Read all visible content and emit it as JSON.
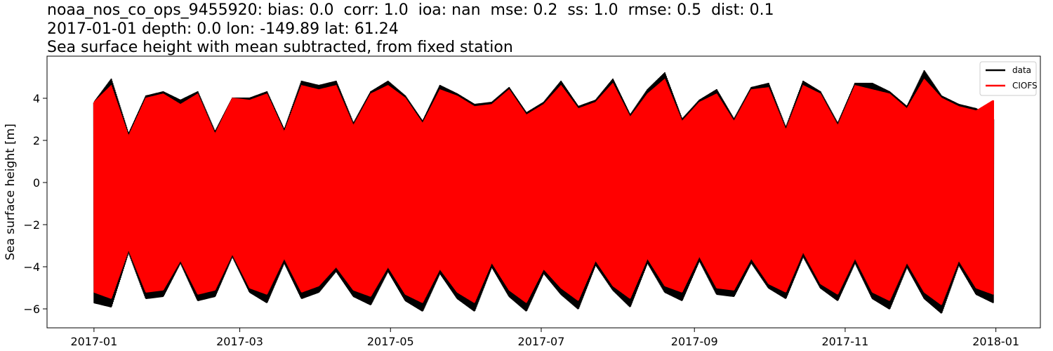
{
  "title": {
    "line1": "noaa_nos_co_ops_9455920: bias: 0.0  corr: 1.0  ioa: nan  mse: 0.2  ss: 1.0  rmse: 0.5  dist: 0.1",
    "line2": "2017-01-01 depth: 0.0 lon: -149.89 lat: 61.24",
    "line3": "Sea surface height with mean subtracted, from fixed station"
  },
  "chart_data": {
    "type": "line",
    "title": "Sea surface height with mean subtracted, from fixed station",
    "xlabel": "",
    "ylabel": "Sea surface height [m]",
    "xlim": [
      "2016-12-13",
      "2018-01-19"
    ],
    "ylim": [
      -6.9,
      6.0
    ],
    "x_ticks": [
      "2017-01",
      "2017-03",
      "2017-05",
      "2017-07",
      "2017-09",
      "2017-11",
      "2018-01"
    ],
    "y_ticks": [
      -6,
      -4,
      -2,
      0,
      2,
      4
    ],
    "grid": false,
    "legend_position": "top-right",
    "x": [
      "2017-01-01",
      "2017-01-08",
      "2017-01-15",
      "2017-01-22",
      "2017-01-29",
      "2017-02-05",
      "2017-02-12",
      "2017-02-19",
      "2017-02-26",
      "2017-03-05",
      "2017-03-12",
      "2017-03-19",
      "2017-03-26",
      "2017-04-02",
      "2017-04-09",
      "2017-04-16",
      "2017-04-23",
      "2017-04-30",
      "2017-05-07",
      "2017-05-14",
      "2017-05-21",
      "2017-05-28",
      "2017-06-04",
      "2017-06-11",
      "2017-06-18",
      "2017-06-25",
      "2017-07-02",
      "2017-07-09",
      "2017-07-16",
      "2017-07-23",
      "2017-07-30",
      "2017-08-06",
      "2017-08-13",
      "2017-08-20",
      "2017-08-27",
      "2017-09-03",
      "2017-09-10",
      "2017-09-17",
      "2017-09-24",
      "2017-10-01",
      "2017-10-08",
      "2017-10-15",
      "2017-10-22",
      "2017-10-29",
      "2017-11-05",
      "2017-11-12",
      "2017-11-19",
      "2017-11-26",
      "2017-12-03",
      "2017-12-10",
      "2017-12-17",
      "2017-12-24",
      "2017-12-31"
    ],
    "series": [
      {
        "name": "data",
        "color": "#000000",
        "high": [
          3.8,
          4.9,
          2.3,
          4.1,
          4.3,
          3.9,
          4.3,
          2.4,
          4.0,
          4.0,
          4.3,
          2.5,
          4.8,
          4.6,
          4.8,
          2.8,
          4.3,
          4.8,
          4.1,
          2.9,
          4.6,
          4.2,
          3.7,
          3.8,
          4.5,
          3.3,
          3.8,
          4.8,
          3.6,
          3.9,
          4.9,
          3.2,
          4.4,
          5.2,
          3.0,
          3.9,
          4.4,
          3.0,
          4.5,
          4.7,
          2.6,
          4.8,
          4.3,
          2.8,
          4.7,
          4.7,
          4.3,
          3.6,
          5.3,
          4.1,
          3.7,
          3.5,
          3.0
        ],
        "low": [
          -5.7,
          -5.9,
          -3.3,
          -5.5,
          -5.4,
          -3.8,
          -5.6,
          -5.4,
          -3.5,
          -5.2,
          -5.7,
          -3.8,
          -5.5,
          -5.2,
          -4.2,
          -5.4,
          -5.8,
          -4.2,
          -5.6,
          -6.1,
          -4.3,
          -5.5,
          -6.1,
          -4.0,
          -5.4,
          -6.1,
          -4.3,
          -5.3,
          -6.0,
          -3.9,
          -5.1,
          -5.9,
          -3.8,
          -5.2,
          -5.6,
          -3.7,
          -5.3,
          -5.4,
          -3.8,
          -5.0,
          -5.5,
          -3.5,
          -5.0,
          -5.6,
          -3.8,
          -5.5,
          -6.0,
          -4.0,
          -5.5,
          -6.2,
          -3.9,
          -5.3,
          -5.7
        ]
      },
      {
        "name": "CIOFS",
        "color": "#ff0000",
        "high": [
          3.8,
          4.6,
          2.2,
          4.0,
          4.2,
          3.7,
          4.2,
          2.3,
          4.0,
          3.9,
          4.2,
          2.4,
          4.6,
          4.4,
          4.6,
          2.7,
          4.2,
          4.6,
          4.0,
          2.8,
          4.4,
          4.1,
          3.6,
          3.7,
          4.4,
          3.2,
          3.7,
          4.6,
          3.5,
          3.8,
          4.7,
          3.1,
          4.2,
          4.9,
          2.9,
          3.8,
          4.2,
          2.9,
          4.4,
          4.5,
          2.5,
          4.6,
          4.2,
          2.7,
          4.6,
          4.4,
          4.2,
          3.5,
          4.9,
          4.0,
          3.6,
          3.4,
          3.9
        ],
        "low": [
          -5.2,
          -5.5,
          -3.2,
          -5.2,
          -5.1,
          -3.7,
          -5.3,
          -5.1,
          -3.4,
          -5.0,
          -5.3,
          -3.6,
          -5.2,
          -4.9,
          -4.0,
          -5.1,
          -5.4,
          -4.0,
          -5.3,
          -5.7,
          -4.1,
          -5.2,
          -5.7,
          -3.8,
          -5.1,
          -5.7,
          -4.1,
          -5.0,
          -5.6,
          -3.7,
          -4.9,
          -5.5,
          -3.6,
          -4.9,
          -5.2,
          -3.5,
          -5.0,
          -5.1,
          -3.6,
          -4.8,
          -5.2,
          -3.3,
          -4.8,
          -5.3,
          -3.6,
          -5.2,
          -5.6,
          -3.8,
          -5.2,
          -5.8,
          -3.7,
          -5.0,
          -5.3
        ]
      }
    ]
  }
}
